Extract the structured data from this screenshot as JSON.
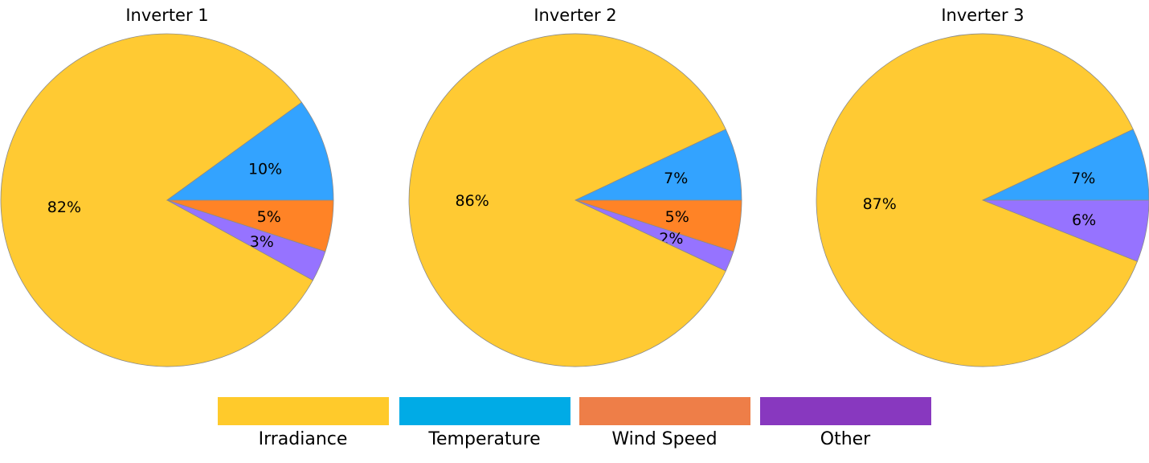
{
  "chart_data": {
    "type": "pie",
    "slice_colors": {
      "Irradiance": "#FFCA33",
      "Temperature": "#33A3FF",
      "Wind Speed": "#FF8326",
      "Other": "#9673FF"
    },
    "legend": {
      "placement": "bottom",
      "entries": [
        {
          "label": "Irradiance",
          "color": "#FFCA2B"
        },
        {
          "label": "Temperature",
          "color": "#00ABE6"
        },
        {
          "label": "Wind Speed",
          "color": "#EE7E48"
        },
        {
          "label": "Other",
          "color": "#8838BF"
        }
      ]
    },
    "charts": [
      {
        "title": "Inverter 1",
        "slices": [
          {
            "category": "Wind Speed",
            "value": 5,
            "label": "5%"
          },
          {
            "category": "Other",
            "value": 3,
            "label": "3%"
          },
          {
            "category": "Irradiance",
            "value": 82,
            "label": "82%"
          },
          {
            "category": "Temperature",
            "value": 10,
            "label": "10%"
          }
        ]
      },
      {
        "title": "Inverter 2",
        "slices": [
          {
            "category": "Wind Speed",
            "value": 5,
            "label": "5%"
          },
          {
            "category": "Other",
            "value": 2,
            "label": "2%"
          },
          {
            "category": "Irradiance",
            "value": 86,
            "label": "86%"
          },
          {
            "category": "Temperature",
            "value": 7,
            "label": "7%"
          }
        ]
      },
      {
        "title": "Inverter 3",
        "slices": [
          {
            "category": "Other",
            "value": 6,
            "label": "6%"
          },
          {
            "category": "Irradiance",
            "value": 87,
            "label": "87%"
          },
          {
            "category": "Temperature",
            "value": 7,
            "label": "7%"
          }
        ]
      }
    ]
  }
}
